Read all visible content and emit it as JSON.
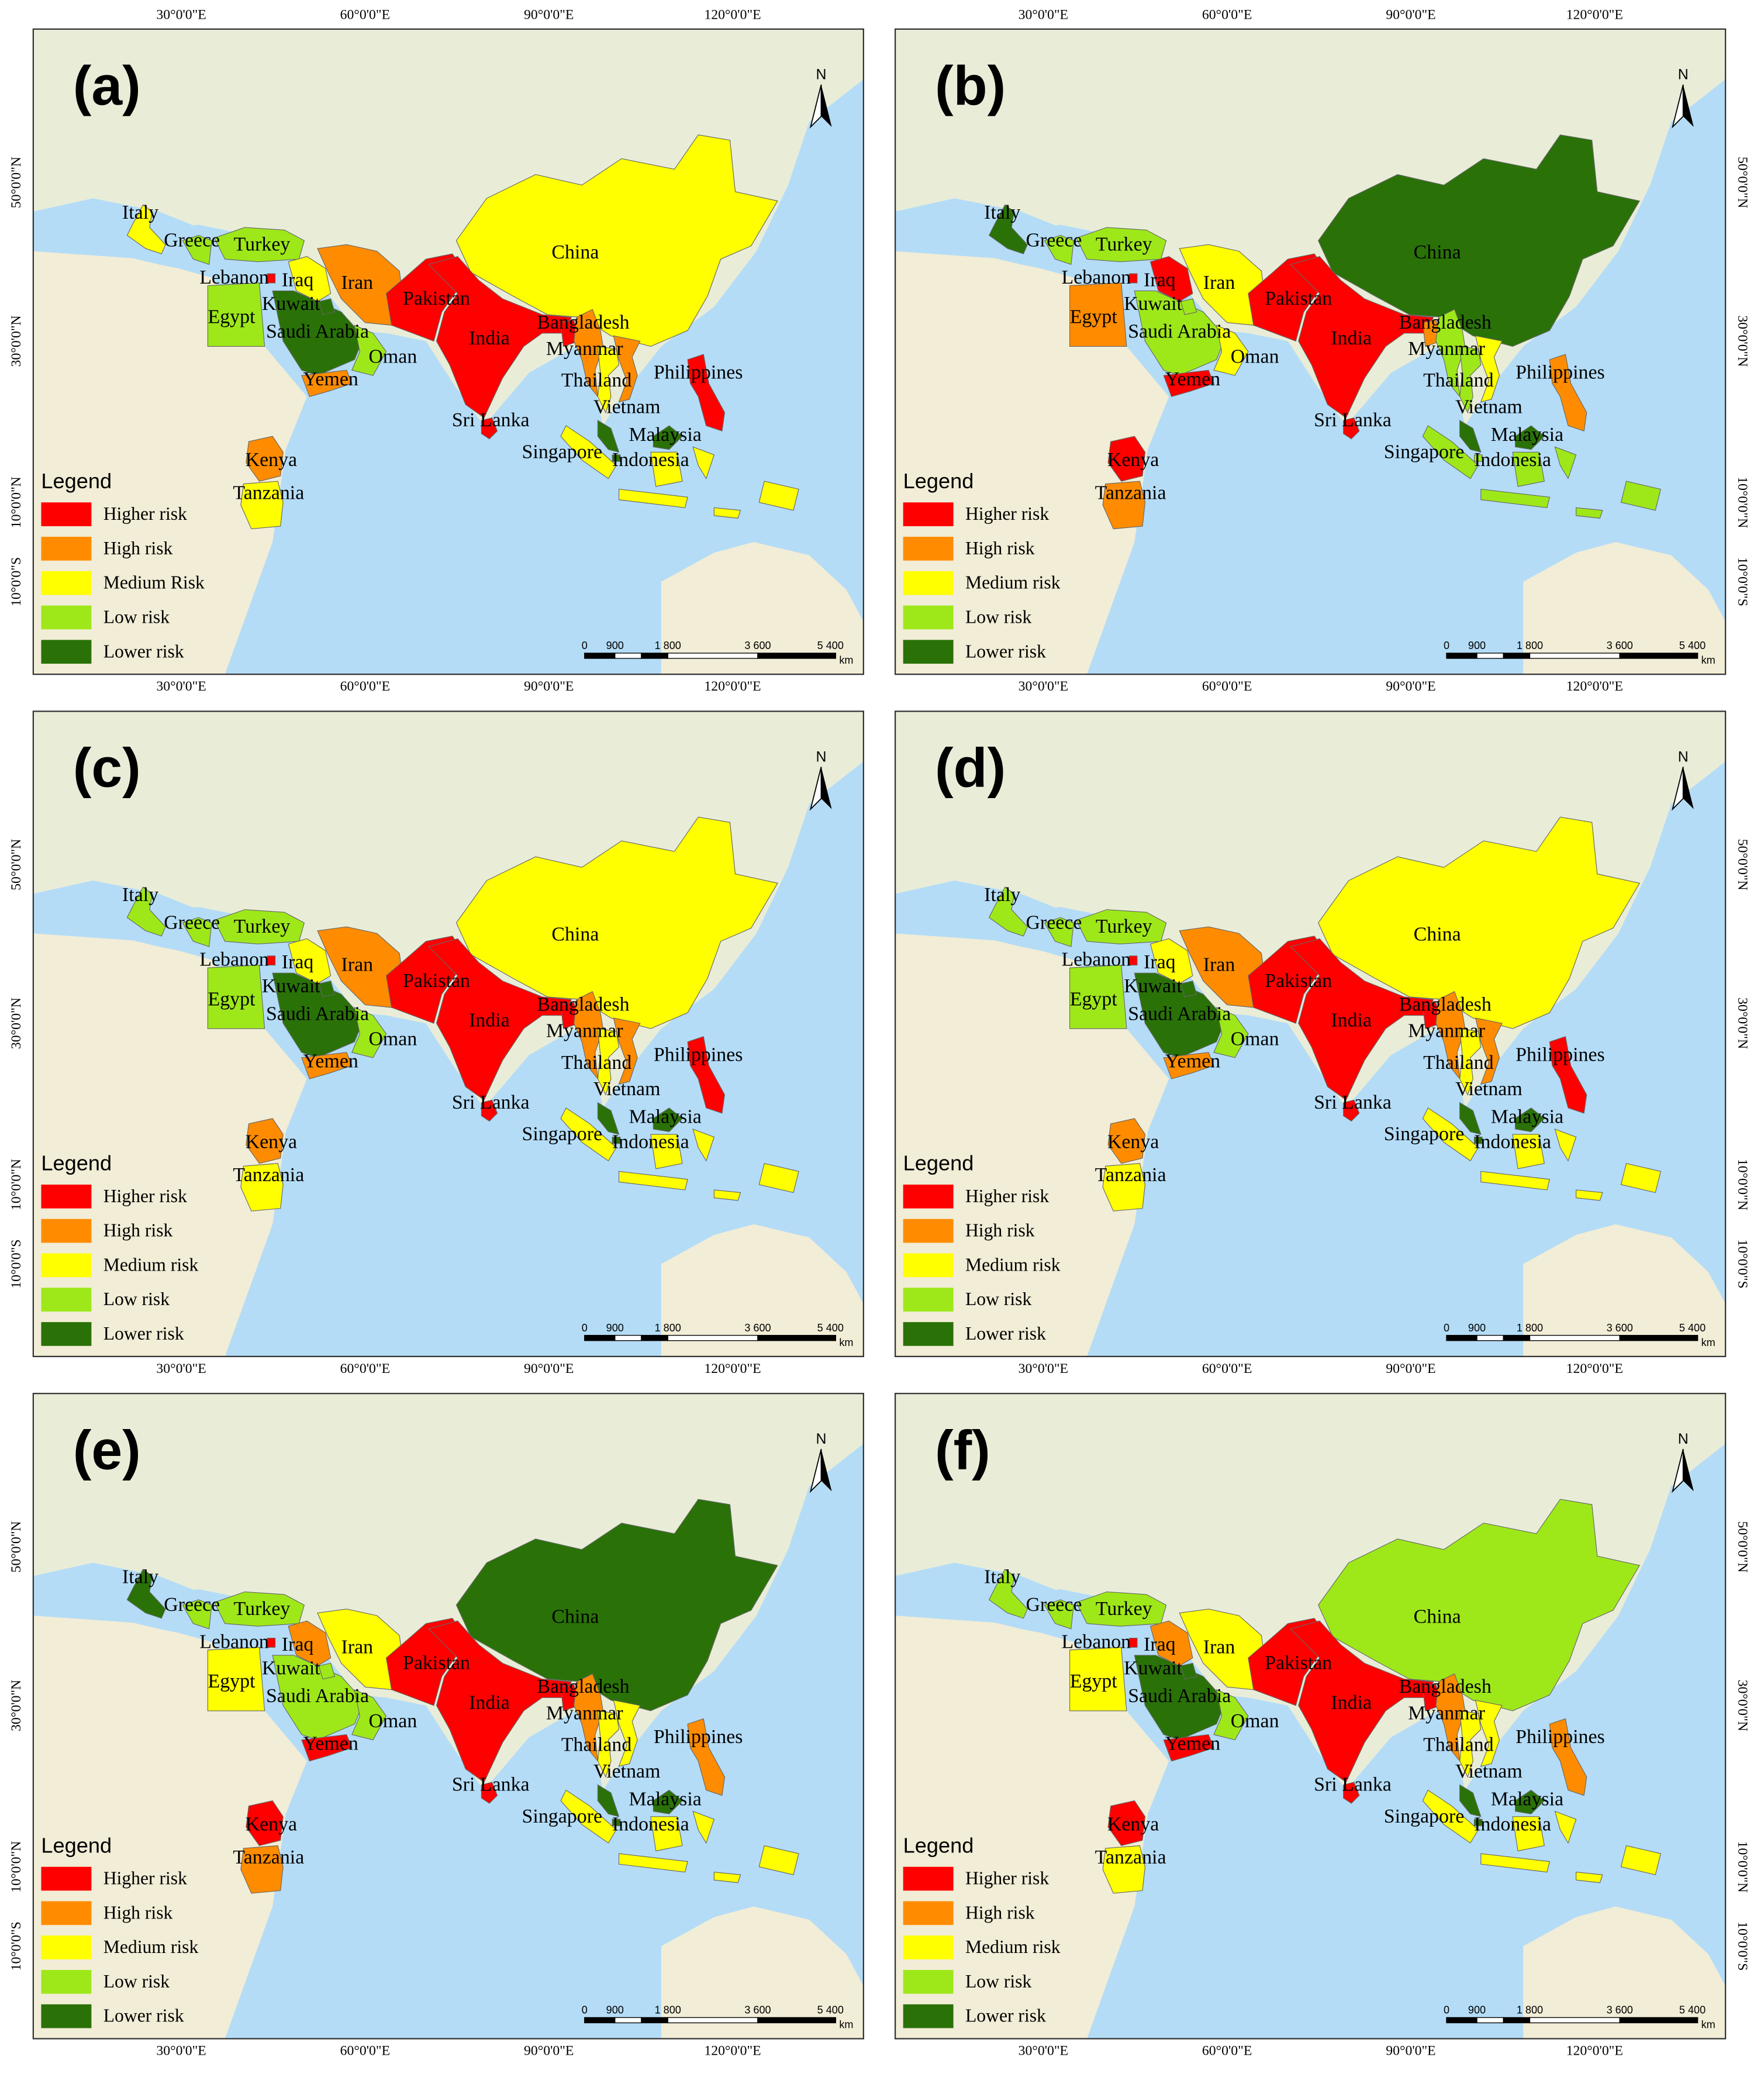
{
  "graticule": {
    "lon": [
      "30°0'0\"E",
      "60°0'0\"E",
      "90°0'0\"E",
      "120°0'0\"E"
    ],
    "lat": [
      "50°0'0\"N",
      "30°0'0\"N",
      "10°0'0\"N",
      "10°0'0\"S"
    ]
  },
  "north": "N",
  "scale_bar": {
    "ticks": [
      "0",
      "900",
      "1 800",
      "3 600",
      "5 400"
    ],
    "unit": "km"
  },
  "panels": [
    {
      "label": "(a)",
      "legend": {
        "title": "Legend",
        "items": [
          {
            "label": "Higher risk",
            "color": "#ff0000"
          },
          {
            "label": "High risk",
            "color": "#ff8c00"
          },
          {
            "label": "Medium Risk",
            "color": "#ffff00"
          },
          {
            "label": "Low risk",
            "color": "#9ee81a"
          },
          {
            "label": "Lower risk",
            "color": "#2a7208"
          }
        ]
      },
      "countries": [
        {
          "name": "China",
          "color": "#ffff00"
        },
        {
          "name": "Italy",
          "color": "#ffff00"
        },
        {
          "name": "Greece",
          "color": "#9ee81a"
        },
        {
          "name": "Turkey",
          "color": "#9ee81a"
        },
        {
          "name": "Lebanon",
          "color": "#ff0000"
        },
        {
          "name": "Iraq",
          "color": "#ffff00"
        },
        {
          "name": "Iran",
          "color": "#ff8c00"
        },
        {
          "name": "Pakistan",
          "color": "#ff0000"
        },
        {
          "name": "Egypt",
          "color": "#9ee81a"
        },
        {
          "name": "Saudi Arabia",
          "color": "#2a7208"
        },
        {
          "name": "Kuwait",
          "color": "#2a7208"
        },
        {
          "name": "Oman",
          "color": "#9ee81a"
        },
        {
          "name": "India",
          "color": "#ff0000"
        },
        {
          "name": "Bangladesh",
          "color": "#ff0000"
        },
        {
          "name": "Myanmar",
          "color": "#ff8c00"
        },
        {
          "name": "Thailand",
          "color": "#ffff00"
        },
        {
          "name": "Vietnam",
          "color": "#ff8c00"
        },
        {
          "name": "Philippines",
          "color": "#ff0000"
        },
        {
          "name": "Yemen",
          "color": "#ff8c00"
        },
        {
          "name": "Sri Lanka",
          "color": "#ff0000"
        },
        {
          "name": "Malaysia",
          "color": "#2a7208"
        },
        {
          "name": "Singapore",
          "color": "#2a7208"
        },
        {
          "name": "Indonesia",
          "color": "#ffff00"
        },
        {
          "name": "Kenya",
          "color": "#ff8c00"
        },
        {
          "name": "Tanzania",
          "color": "#ffff00"
        }
      ]
    },
    {
      "label": "(b)",
      "legend": {
        "title": "Legend",
        "items": [
          {
            "label": "Higher risk",
            "color": "#ff0000"
          },
          {
            "label": "High risk",
            "color": "#ff8c00"
          },
          {
            "label": "Medium risk",
            "color": "#ffff00"
          },
          {
            "label": "Low risk",
            "color": "#9ee81a"
          },
          {
            "label": "Lower risk",
            "color": "#2a7208"
          }
        ]
      },
      "countries": [
        {
          "name": "China",
          "color": "#2a7208"
        },
        {
          "name": "Italy",
          "color": "#2a7208"
        },
        {
          "name": "Greece",
          "color": "#9ee81a"
        },
        {
          "name": "Turkey",
          "color": "#9ee81a"
        },
        {
          "name": "Lebanon",
          "color": "#ff0000"
        },
        {
          "name": "Iraq",
          "color": "#ff0000"
        },
        {
          "name": "Iran",
          "color": "#ffff00"
        },
        {
          "name": "Pakistan",
          "color": "#ff0000"
        },
        {
          "name": "Egypt",
          "color": "#ff8c00"
        },
        {
          "name": "Saudi Arabia",
          "color": "#9ee81a"
        },
        {
          "name": "Kuwait",
          "color": "#9ee81a"
        },
        {
          "name": "Oman",
          "color": "#ffff00"
        },
        {
          "name": "India",
          "color": "#ff0000"
        },
        {
          "name": "Bangladesh",
          "color": "#ff8c00"
        },
        {
          "name": "Myanmar",
          "color": "#9ee81a"
        },
        {
          "name": "Thailand",
          "color": "#9ee81a"
        },
        {
          "name": "Vietnam",
          "color": "#ffff00"
        },
        {
          "name": "Philippines",
          "color": "#ff8c00"
        },
        {
          "name": "Yemen",
          "color": "#ff0000"
        },
        {
          "name": "Sri Lanka",
          "color": "#ff0000"
        },
        {
          "name": "Malaysia",
          "color": "#2a7208"
        },
        {
          "name": "Singapore",
          "color": "#9ee81a"
        },
        {
          "name": "Indonesia",
          "color": "#9ee81a"
        },
        {
          "name": "Kenya",
          "color": "#ff0000"
        },
        {
          "name": "Tanzania",
          "color": "#ff8c00"
        }
      ]
    },
    {
      "label": "(c)",
      "legend": {
        "title": "Legend",
        "items": [
          {
            "label": "Higher risk",
            "color": "#ff0000"
          },
          {
            "label": "High risk",
            "color": "#ff8c00"
          },
          {
            "label": "Medium risk",
            "color": "#ffff00"
          },
          {
            "label": "Low risk",
            "color": "#9ee81a"
          },
          {
            "label": "Lower risk",
            "color": "#2a7208"
          }
        ]
      },
      "countries": [
        {
          "name": "China",
          "color": "#ffff00"
        },
        {
          "name": "Italy",
          "color": "#9ee81a"
        },
        {
          "name": "Greece",
          "color": "#9ee81a"
        },
        {
          "name": "Turkey",
          "color": "#9ee81a"
        },
        {
          "name": "Lebanon",
          "color": "#ff0000"
        },
        {
          "name": "Iraq",
          "color": "#ffff00"
        },
        {
          "name": "Iran",
          "color": "#ff8c00"
        },
        {
          "name": "Pakistan",
          "color": "#ff0000"
        },
        {
          "name": "Egypt",
          "color": "#9ee81a"
        },
        {
          "name": "Saudi Arabia",
          "color": "#2a7208"
        },
        {
          "name": "Kuwait",
          "color": "#2a7208"
        },
        {
          "name": "Oman",
          "color": "#9ee81a"
        },
        {
          "name": "India",
          "color": "#ff0000"
        },
        {
          "name": "Bangladesh",
          "color": "#ff0000"
        },
        {
          "name": "Myanmar",
          "color": "#ff8c00"
        },
        {
          "name": "Thailand",
          "color": "#ffff00"
        },
        {
          "name": "Vietnam",
          "color": "#ff8c00"
        },
        {
          "name": "Philippines",
          "color": "#ff0000"
        },
        {
          "name": "Yemen",
          "color": "#ff8c00"
        },
        {
          "name": "Sri Lanka",
          "color": "#ff0000"
        },
        {
          "name": "Malaysia",
          "color": "#2a7208"
        },
        {
          "name": "Singapore",
          "color": "#2a7208"
        },
        {
          "name": "Indonesia",
          "color": "#ffff00"
        },
        {
          "name": "Kenya",
          "color": "#ff8c00"
        },
        {
          "name": "Tanzania",
          "color": "#ffff00"
        }
      ]
    },
    {
      "label": "(d)",
      "legend": {
        "title": "Legend",
        "items": [
          {
            "label": "Higher risk",
            "color": "#ff0000"
          },
          {
            "label": "High risk",
            "color": "#ff8c00"
          },
          {
            "label": "Medium risk",
            "color": "#ffff00"
          },
          {
            "label": "Low risk",
            "color": "#9ee81a"
          },
          {
            "label": "Lower risk",
            "color": "#2a7208"
          }
        ]
      },
      "countries": [
        {
          "name": "China",
          "color": "#ffff00"
        },
        {
          "name": "Italy",
          "color": "#9ee81a"
        },
        {
          "name": "Greece",
          "color": "#9ee81a"
        },
        {
          "name": "Turkey",
          "color": "#9ee81a"
        },
        {
          "name": "Lebanon",
          "color": "#ff0000"
        },
        {
          "name": "Iraq",
          "color": "#ffff00"
        },
        {
          "name": "Iran",
          "color": "#ff8c00"
        },
        {
          "name": "Pakistan",
          "color": "#ff0000"
        },
        {
          "name": "Egypt",
          "color": "#9ee81a"
        },
        {
          "name": "Saudi Arabia",
          "color": "#2a7208"
        },
        {
          "name": "Kuwait",
          "color": "#2a7208"
        },
        {
          "name": "Oman",
          "color": "#9ee81a"
        },
        {
          "name": "India",
          "color": "#ff0000"
        },
        {
          "name": "Bangladesh",
          "color": "#ff0000"
        },
        {
          "name": "Myanmar",
          "color": "#ff8c00"
        },
        {
          "name": "Thailand",
          "color": "#ffff00"
        },
        {
          "name": "Vietnam",
          "color": "#ff8c00"
        },
        {
          "name": "Philippines",
          "color": "#ff0000"
        },
        {
          "name": "Yemen",
          "color": "#ff8c00"
        },
        {
          "name": "Sri Lanka",
          "color": "#ff0000"
        },
        {
          "name": "Malaysia",
          "color": "#2a7208"
        },
        {
          "name": "Singapore",
          "color": "#2a7208"
        },
        {
          "name": "Indonesia",
          "color": "#ffff00"
        },
        {
          "name": "Kenya",
          "color": "#ff8c00"
        },
        {
          "name": "Tanzania",
          "color": "#ffff00"
        }
      ]
    },
    {
      "label": "(e)",
      "legend": {
        "title": "Legend",
        "items": [
          {
            "label": "Higher risk",
            "color": "#ff0000"
          },
          {
            "label": "High risk",
            "color": "#ff8c00"
          },
          {
            "label": "Medium risk",
            "color": "#ffff00"
          },
          {
            "label": "Low risk",
            "color": "#9ee81a"
          },
          {
            "label": "Lower risk",
            "color": "#2a7208"
          }
        ]
      },
      "countries": [
        {
          "name": "China",
          "color": "#2a7208"
        },
        {
          "name": "Italy",
          "color": "#2a7208"
        },
        {
          "name": "Greece",
          "color": "#9ee81a"
        },
        {
          "name": "Turkey",
          "color": "#9ee81a"
        },
        {
          "name": "Lebanon",
          "color": "#ff0000"
        },
        {
          "name": "Iraq",
          "color": "#ff8c00"
        },
        {
          "name": "Iran",
          "color": "#ffff00"
        },
        {
          "name": "Pakistan",
          "color": "#ff0000"
        },
        {
          "name": "Egypt",
          "color": "#ffff00"
        },
        {
          "name": "Saudi Arabia",
          "color": "#9ee81a"
        },
        {
          "name": "Kuwait",
          "color": "#9ee81a"
        },
        {
          "name": "Oman",
          "color": "#9ee81a"
        },
        {
          "name": "India",
          "color": "#ff0000"
        },
        {
          "name": "Bangladesh",
          "color": "#ff0000"
        },
        {
          "name": "Myanmar",
          "color": "#ff8c00"
        },
        {
          "name": "Thailand",
          "color": "#ffff00"
        },
        {
          "name": "Vietnam",
          "color": "#ffff00"
        },
        {
          "name": "Philippines",
          "color": "#ff8c00"
        },
        {
          "name": "Yemen",
          "color": "#ff0000"
        },
        {
          "name": "Sri Lanka",
          "color": "#ff0000"
        },
        {
          "name": "Malaysia",
          "color": "#2a7208"
        },
        {
          "name": "Singapore",
          "color": "#2a7208"
        },
        {
          "name": "Indonesia",
          "color": "#ffff00"
        },
        {
          "name": "Kenya",
          "color": "#ff0000"
        },
        {
          "name": "Tanzania",
          "color": "#ff8c00"
        }
      ]
    },
    {
      "label": "(f)",
      "legend": {
        "title": "Legend",
        "items": [
          {
            "label": "Higher risk",
            "color": "#ff0000"
          },
          {
            "label": "High risk",
            "color": "#ff8c00"
          },
          {
            "label": "Medium risk",
            "color": "#ffff00"
          },
          {
            "label": "Low risk",
            "color": "#9ee81a"
          },
          {
            "label": "Lower risk",
            "color": "#2a7208"
          }
        ]
      },
      "countries": [
        {
          "name": "China",
          "color": "#9ee81a"
        },
        {
          "name": "Italy",
          "color": "#9ee81a"
        },
        {
          "name": "Greece",
          "color": "#9ee81a"
        },
        {
          "name": "Turkey",
          "color": "#9ee81a"
        },
        {
          "name": "Lebanon",
          "color": "#ff0000"
        },
        {
          "name": "Iraq",
          "color": "#ff8c00"
        },
        {
          "name": "Iran",
          "color": "#ffff00"
        },
        {
          "name": "Pakistan",
          "color": "#ff0000"
        },
        {
          "name": "Egypt",
          "color": "#ffff00"
        },
        {
          "name": "Saudi Arabia",
          "color": "#2a7208"
        },
        {
          "name": "Kuwait",
          "color": "#2a7208"
        },
        {
          "name": "Oman",
          "color": "#9ee81a"
        },
        {
          "name": "India",
          "color": "#ff0000"
        },
        {
          "name": "Bangladesh",
          "color": "#ff0000"
        },
        {
          "name": "Myanmar",
          "color": "#ff8c00"
        },
        {
          "name": "Thailand",
          "color": "#ffff00"
        },
        {
          "name": "Vietnam",
          "color": "#ffff00"
        },
        {
          "name": "Philippines",
          "color": "#ff8c00"
        },
        {
          "name": "Yemen",
          "color": "#ff0000"
        },
        {
          "name": "Sri Lanka",
          "color": "#ff0000"
        },
        {
          "name": "Malaysia",
          "color": "#2a7208"
        },
        {
          "name": "Singapore",
          "color": "#2a7208"
        },
        {
          "name": "Indonesia",
          "color": "#ffff00"
        },
        {
          "name": "Kenya",
          "color": "#ff0000"
        },
        {
          "name": "Tanzania",
          "color": "#ffff00"
        }
      ]
    }
  ]
}
